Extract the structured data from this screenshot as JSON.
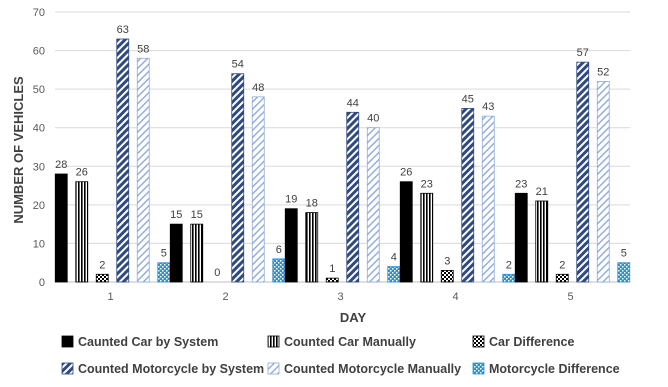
{
  "chart_data": {
    "type": "bar",
    "categories": [
      "1",
      "2",
      "3",
      "4",
      "5"
    ],
    "series": [
      {
        "name": "Caunted Car by System",
        "values": [
          28,
          15,
          19,
          26,
          23
        ]
      },
      {
        "name": "Counted Car Manually",
        "values": [
          26,
          15,
          18,
          23,
          21
        ]
      },
      {
        "name": "Car Difference",
        "values": [
          2,
          0,
          1,
          3,
          2
        ]
      },
      {
        "name": "Counted Motorcycle by System",
        "values": [
          63,
          54,
          44,
          45,
          57
        ]
      },
      {
        "name": "Counted Motorcycle Manually",
        "values": [
          58,
          48,
          40,
          43,
          52
        ]
      },
      {
        "name": "Motorcycle Difference",
        "values": [
          5,
          6,
          4,
          2,
          5
        ]
      }
    ],
    "xlabel": "DAY",
    "ylabel": "NUMBER OF VEHICLES",
    "ylim": [
      0,
      70
    ],
    "yticks": [
      0,
      10,
      20,
      30,
      40,
      50,
      60,
      70
    ],
    "grid": true,
    "legend_position": "bottom",
    "colors": {
      "car_system": "#000000",
      "car_manual": "#000000",
      "car_difference": "#000000",
      "moto_system": "#2f4a80",
      "moto_manual": "#8eaadb",
      "moto_difference": "#2e8fd6",
      "grid": "#d9d9d9",
      "axis": "#bfbfbf"
    }
  }
}
